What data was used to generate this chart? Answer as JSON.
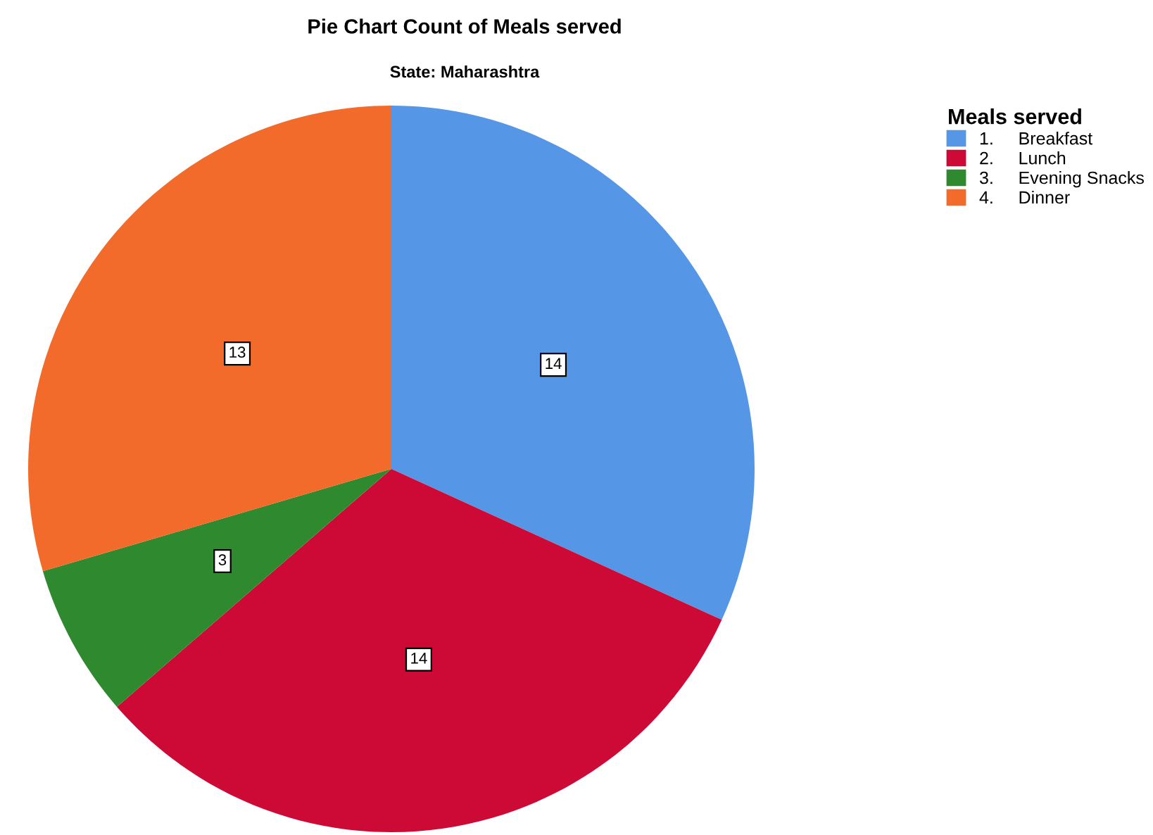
{
  "chart_data": {
    "type": "pie",
    "title": "Pie Chart Count of Meals served",
    "subtitle": "State: Maharashtra",
    "legend_title": "Meals served",
    "categories": [
      "1.     Breakfast",
      "2.     Lunch",
      "3.     Evening Snacks",
      "4.     Dinner"
    ],
    "values": [
      14,
      14,
      3,
      13
    ],
    "colors": [
      "#5597e6",
      "#cc0a35",
      "#2f8a2f",
      "#f26b2a"
    ],
    "data_labels": true,
    "legend": "top right"
  }
}
